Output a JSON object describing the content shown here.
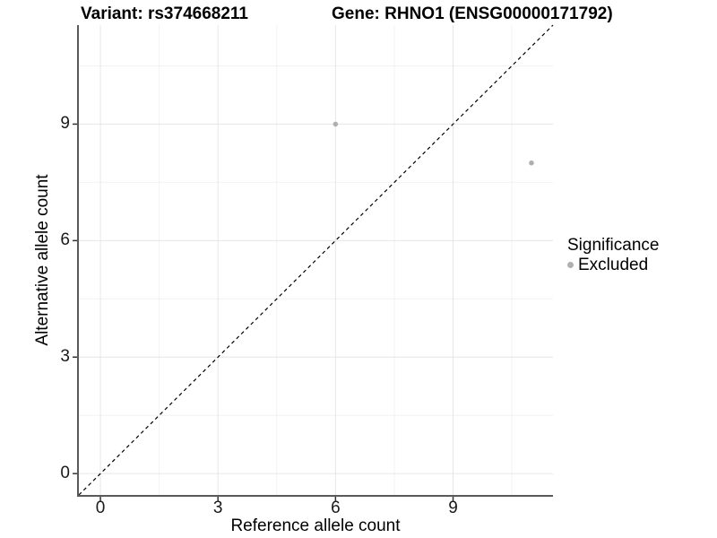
{
  "figure": {
    "title_left": "Variant: rs374668211",
    "title_right": "Gene: RHNO1 (ENSG00000171792)"
  },
  "legend": {
    "title": "Significance",
    "items": [
      {
        "label": "Excluded",
        "color": "#b0b0b0",
        "marker": "circle"
      }
    ]
  },
  "chart_data": {
    "type": "scatter",
    "title": "",
    "xlabel": "Reference allele count",
    "ylabel": "Alternative allele count",
    "xlim": [
      -0.55,
      11.55
    ],
    "ylim": [
      -0.55,
      11.55
    ],
    "x_ticks": [
      0,
      3,
      6,
      9
    ],
    "y_ticks": [
      0,
      3,
      6,
      9
    ],
    "x_minor_ticks": [
      1.5,
      4.5,
      7.5,
      10.5
    ],
    "y_minor_ticks": [
      1.5,
      4.5,
      7.5,
      10.5
    ],
    "grid": true,
    "legend_position": "right",
    "series": [
      {
        "name": "Excluded",
        "color": "#b0b0b0",
        "point_radius": 2.8,
        "points": [
          {
            "x": 6,
            "y": 9
          },
          {
            "x": 11,
            "y": 8
          }
        ]
      }
    ],
    "reference_line": {
      "type": "identity",
      "style": "dashed",
      "from": [
        -0.55,
        -0.55
      ],
      "to": [
        11.55,
        11.55
      ],
      "color": "#000000"
    },
    "style_colors": {
      "grid_major": "#e6e6e6",
      "grid_minor": "#f2f2f2",
      "axis_line": "#5a5a5a",
      "tick_mark": "#333333"
    }
  }
}
